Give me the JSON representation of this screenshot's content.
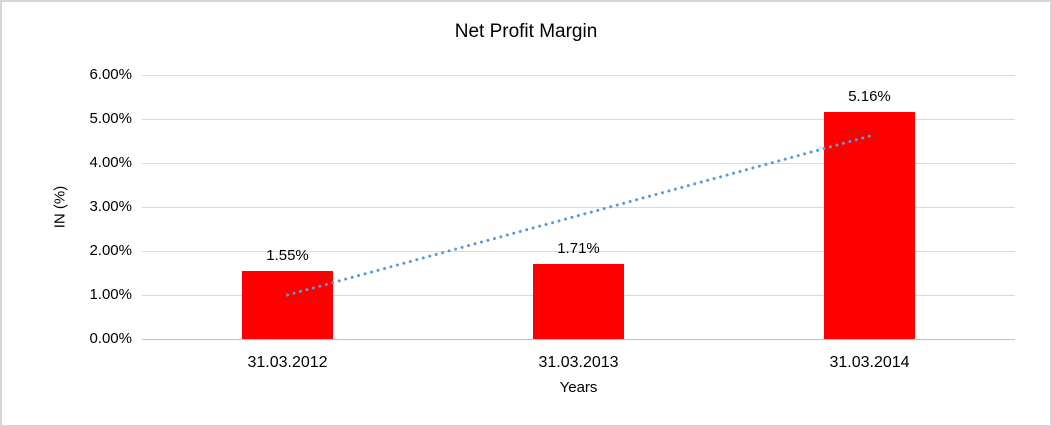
{
  "chart": {
    "title": "Net Profit Margin",
    "y_axis_title": "IN (%)",
    "x_axis_title": "Years"
  },
  "chart_data": {
    "type": "bar",
    "title": "Net Profit Margin",
    "xlabel": "Years",
    "ylabel": "IN (%)",
    "categories": [
      "31.03.2012",
      "31.03.2013",
      "31.03.2014"
    ],
    "values": [
      1.55,
      1.71,
      5.16
    ],
    "data_labels": [
      "1.55%",
      "1.71%",
      "5.16%"
    ],
    "ytick_labels": [
      "0.00%",
      "1.00%",
      "2.00%",
      "3.00%",
      "4.00%",
      "5.00%",
      "6.00%"
    ],
    "ylim": [
      0,
      6
    ],
    "grid": true,
    "legend": false,
    "bar_color": "#FF0000",
    "gridline_color": "#D9D9D9",
    "trendline": {
      "type": "linear",
      "style": "dotted",
      "color": "#5B9BD5",
      "start_category": "31.03.2012",
      "end_category": "31.03.2014",
      "start_value": 1.0,
      "end_value": 4.61
    }
  }
}
